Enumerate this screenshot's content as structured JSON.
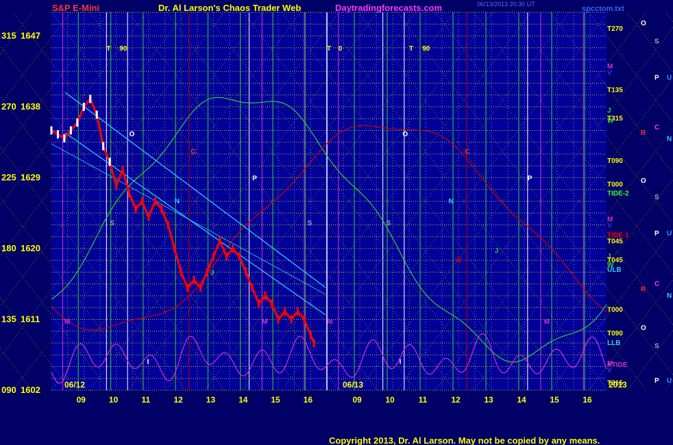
{
  "header": {
    "left_title": "S&P E-Mini",
    "center_title": "Dr. Al Larson's Chaos Trader Web",
    "site": "Daytradingforecasts.com",
    "timestamp": "06/13/2013 20:30 UT",
    "file": "spcctom.txt"
  },
  "footer": {
    "copyright": "Copyright 2013, Dr. Al Larson. May not be copied by any means."
  },
  "colors": {
    "background": "#000066",
    "plot_bg": "#000099",
    "price_up": "#ff0000",
    "price_white": "#ffffff",
    "tide1": "#cc0000",
    "tide2": "#33cc33",
    "xtide": "#cc33cc",
    "ulb": "#33ccff",
    "llb": "#33ccff",
    "grid_yellow": "#ffff00"
  },
  "chart_data": {
    "type": "line",
    "xlabel": "",
    "ylabel": "",
    "y_ticks": [
      {
        "deg": "315",
        "price": "1647"
      },
      {
        "deg": "270",
        "price": "1638"
      },
      {
        "deg": "225",
        "price": "1629"
      },
      {
        "deg": "180",
        "price": "1620"
      },
      {
        "deg": "135",
        "price": "1611"
      },
      {
        "deg": "090",
        "price": "1602"
      }
    ],
    "ylim": [
      1602,
      1650
    ],
    "x_hours": [
      "09",
      "10",
      "11",
      "12",
      "13",
      "14",
      "15",
      "16",
      "09",
      "10",
      "11",
      "12",
      "13",
      "14",
      "15",
      "16"
    ],
    "date_labels": [
      "06/12",
      "06/13"
    ],
    "year_label": "2013",
    "price_series_0612": {
      "name": "",
      "x": [
        8.0,
        8.2,
        8.4,
        8.6,
        8.8,
        9.0,
        9.2,
        9.4,
        9.6,
        9.8,
        10.0,
        10.2,
        10.4,
        10.6,
        10.8,
        11.0,
        11.2,
        11.4,
        11.6,
        11.8,
        12.0,
        12.2,
        12.4,
        12.6,
        12.8,
        13.0,
        13.2,
        13.4,
        13.6,
        13.8,
        14.0,
        14.2,
        14.4,
        14.6,
        14.8,
        15.0,
        15.2,
        15.4,
        15.6,
        15.8,
        16.0,
        16.1
      ],
      "y": [
        1635,
        1634.5,
        1634,
        1635,
        1636,
        1638,
        1639,
        1637,
        1633,
        1631,
        1628,
        1630,
        1627,
        1625,
        1626,
        1624,
        1626,
        1625,
        1623,
        1620,
        1617,
        1615,
        1616,
        1615,
        1617,
        1619,
        1621,
        1619,
        1620,
        1619,
        1617,
        1615,
        1613,
        1614,
        1613,
        1611,
        1612,
        1611,
        1612,
        1611,
        1609,
        1608
      ]
    },
    "right_labels": [
      {
        "text": "T270",
        "price": 1648.0,
        "color": "#ffff00"
      },
      {
        "text": "M",
        "price": 1643.2,
        "color": "#cc33cc"
      },
      {
        "text": "V",
        "price": 1642.4,
        "color": "#3333ff"
      },
      {
        "text": "T135",
        "price": 1640.2,
        "color": "#ffff00"
      },
      {
        "text": "J",
        "price": 1637.6,
        "color": "#33cc33"
      },
      {
        "text": "T315",
        "price": 1636.6,
        "color": "#ffff00"
      },
      {
        "text": "W",
        "price": 1636.3,
        "color": "#33cc33"
      },
      {
        "text": "T090",
        "price": 1631.2,
        "color": "#ffff00"
      },
      {
        "text": "T000",
        "price": 1628.2,
        "color": "#ffff00"
      },
      {
        "text": "TIDE-2",
        "price": 1627.1,
        "color": "#33ff33"
      },
      {
        "text": "M",
        "price": 1623.8,
        "color": "#cc33cc"
      },
      {
        "text": "V",
        "price": 1623.0,
        "color": "#3333ff"
      },
      {
        "text": "TIDE-1",
        "price": 1621.8,
        "color": "#ff0000"
      },
      {
        "text": "T045",
        "price": 1621.0,
        "color": "#ffff00"
      },
      {
        "text": "J",
        "price": 1619.1,
        "color": "#33cc33"
      },
      {
        "text": "T045",
        "price": 1618.6,
        "color": "#ffff00"
      },
      {
        "text": "W",
        "price": 1618.0,
        "color": "#33cc33"
      },
      {
        "text": "ULB",
        "price": 1617.4,
        "color": "#33ccff"
      },
      {
        "text": "T000",
        "price": 1612.3,
        "color": "#ffff00"
      },
      {
        "text": "T090",
        "price": 1609.3,
        "color": "#ffff00"
      },
      {
        "text": "LLB",
        "price": 1608.1,
        "color": "#33ccff"
      },
      {
        "text": "M",
        "price": 1605.5,
        "color": "#cc33cc"
      },
      {
        "text": "XTIDE",
        "price": 1605.3,
        "color": "#cc33cc"
      },
      {
        "text": "V",
        "price": 1604.6,
        "color": "#3333ff"
      },
      {
        "text": "T315",
        "price": 1603.0,
        "color": "#ffff00"
      }
    ],
    "planet_labels": [
      {
        "text": "O",
        "color": "#ffffff",
        "col": 0,
        "price": 1648.7
      },
      {
        "text": "S",
        "color": "#aaaaaa",
        "col": 1,
        "price": 1646.4
      },
      {
        "text": "P",
        "color": "#ffffff",
        "col": 1,
        "price": 1641.8
      },
      {
        "text": "U",
        "color": "#3399ff",
        "col": 2,
        "price": 1641.8
      },
      {
        "text": "C",
        "color": "#ff33ff",
        "col": 1,
        "price": 1635.5
      },
      {
        "text": "R",
        "color": "#ff3333",
        "col": 0,
        "price": 1634.8
      },
      {
        "text": "N",
        "color": "#33ccff",
        "col": 2,
        "price": 1634.0
      },
      {
        "text": "O",
        "color": "#ffffff",
        "col": 0,
        "price": 1628.7
      },
      {
        "text": "S",
        "color": "#aaaaaa",
        "col": 1,
        "price": 1626.6
      },
      {
        "text": "P",
        "color": "#ffffff",
        "col": 1,
        "price": 1622.0
      },
      {
        "text": "U",
        "color": "#3399ff",
        "col": 2,
        "price": 1622.0
      },
      {
        "text": "C",
        "color": "#ff33ff",
        "col": 1,
        "price": 1615.6
      },
      {
        "text": "R",
        "color": "#ff3333",
        "col": 0,
        "price": 1614.9
      },
      {
        "text": "N",
        "color": "#33ccff",
        "col": 2,
        "price": 1614.1
      },
      {
        "text": "O",
        "color": "#ffffff",
        "col": 0,
        "price": 1610.0
      },
      {
        "text": "S",
        "color": "#aaaaaa",
        "col": 1,
        "price": 1607.7
      },
      {
        "text": "P",
        "color": "#ffffff",
        "col": 1,
        "price": 1603.3
      },
      {
        "text": "U",
        "color": "#3399ff",
        "col": 2,
        "price": 1603.3
      }
    ],
    "t90_labels": [
      {
        "text": "T",
        "day": 0,
        "hour": 9.7
      },
      {
        "text": "90",
        "day": 0,
        "hour": 10.1
      },
      {
        "text": "T",
        "day": 1,
        "hour": 8.0
      },
      {
        "text": "0",
        "day": 1,
        "hour": 8.35
      },
      {
        "text": "T",
        "day": 1,
        "hour": 10.5
      },
      {
        "text": "90",
        "day": 1,
        "hour": 10.9
      }
    ],
    "vline_labels": [
      {
        "text": "O",
        "day": 0,
        "hour": 10.4,
        "price": 1634.6,
        "color": "#ffffff"
      },
      {
        "text": "C",
        "day": 0,
        "hour": 12.3,
        "price": 1632.4,
        "color": "#ff3333"
      },
      {
        "text": "P",
        "day": 0,
        "hour": 14.2,
        "price": 1629.0,
        "color": "#ffffff"
      },
      {
        "text": "N",
        "day": 0,
        "hour": 11.8,
        "price": 1626.1,
        "color": "#33ccff"
      },
      {
        "text": "S",
        "day": 0,
        "hour": 9.8,
        "price": 1623.3,
        "color": "#aaaaaa"
      },
      {
        "text": "S",
        "day": 0,
        "hour": 15.9,
        "price": 1623.3,
        "color": "#aaaaaa"
      },
      {
        "text": "J",
        "day": 0,
        "hour": 12.9,
        "price": 1617.0,
        "color": "#33cc33"
      },
      {
        "text": "M",
        "day": 0,
        "hour": 8.4,
        "price": 1610.8,
        "color": "#cc33cc"
      },
      {
        "text": "M",
        "day": 0,
        "hour": 14.5,
        "price": 1610.8,
        "color": "#cc33cc"
      },
      {
        "text": "M",
        "day": 0,
        "hour": 16.5,
        "price": 1610.8,
        "color": "#cc33cc"
      },
      {
        "text": "I",
        "day": 0,
        "hour": 10.95,
        "price": 1605.7,
        "color": "#ffffff"
      },
      {
        "text": "O",
        "day": 1,
        "hour": 10.3,
        "price": 1634.6,
        "color": "#ffffff"
      },
      {
        "text": "C",
        "day": 1,
        "hour": 12.2,
        "price": 1632.4,
        "color": "#ff3333"
      },
      {
        "text": "P",
        "day": 1,
        "hour": 14.1,
        "price": 1629.0,
        "color": "#ffffff"
      },
      {
        "text": "N",
        "day": 1,
        "hour": 11.7,
        "price": 1626.1,
        "color": "#33ccff"
      },
      {
        "text": "S",
        "day": 1,
        "hour": 9.8,
        "price": 1623.3,
        "color": "#aaaaaa"
      },
      {
        "text": "W",
        "day": 1,
        "hour": 11.9,
        "price": 1618.6,
        "color": "#cc0000"
      },
      {
        "text": "J",
        "day": 1,
        "hour": 13.1,
        "price": 1619.8,
        "color": "#33cc33"
      },
      {
        "text": "M",
        "day": 1,
        "hour": 14.6,
        "price": 1610.8,
        "color": "#cc33cc"
      },
      {
        "text": "I",
        "day": 1,
        "hour": 10.2,
        "price": 1605.7,
        "color": "#ffffff"
      }
    ]
  }
}
